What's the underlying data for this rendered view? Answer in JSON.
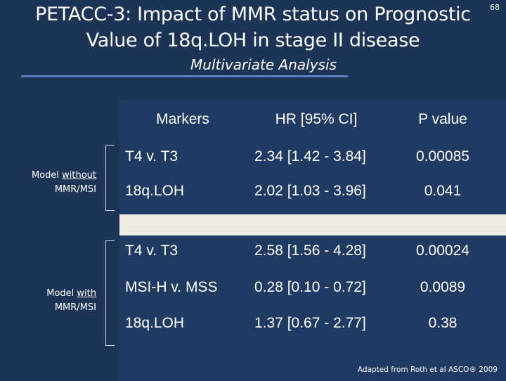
{
  "slide": {
    "title_line1": "PETACC-3: Impact of MMR status on Prognostic",
    "title_line2": "Value of 18q.LOH  in stage II disease",
    "slide_number": "68",
    "subtitle": "Multivariate Analysis",
    "footnote": "Adapted from Roth et al ASCO® 2009"
  },
  "table": {
    "headers": {
      "markers": "Markers",
      "hr": "HR [95% CI]",
      "p": "P value"
    },
    "groups": [
      {
        "label_prefix": "Model ",
        "label_underlined": "without",
        "label_line2": "MMR/MSI",
        "rows": [
          {
            "marker": "T4 v. T3",
            "hr": "2.34 [1.42 - 3.84]",
            "p": "0.00085"
          },
          {
            "marker": "18q.LOH",
            "hr": "2.02 [1.03 - 3.96]",
            "p": "0.041"
          }
        ]
      },
      {
        "label_prefix": "Model ",
        "label_underlined": "with",
        "label_line2": "MMR/MSI",
        "rows": [
          {
            "marker": "T4 v. T3",
            "hr": "2.58 [1.56 - 4.28]",
            "p": "0.00024"
          },
          {
            "marker": "MSI-H v. MSS",
            "hr": "0.28 [0.10 - 0.72]",
            "p": "0.0089"
          },
          {
            "marker": "18q.LOH",
            "hr": "1.37 [0.67 - 2.77]",
            "p": "0.38"
          }
        ]
      }
    ]
  },
  "colors": {
    "background": "#1c3557",
    "table_background": "#1f3b63",
    "separator": "#eeece1",
    "accent": "#5a7cc0",
    "text": "#ffffff"
  }
}
